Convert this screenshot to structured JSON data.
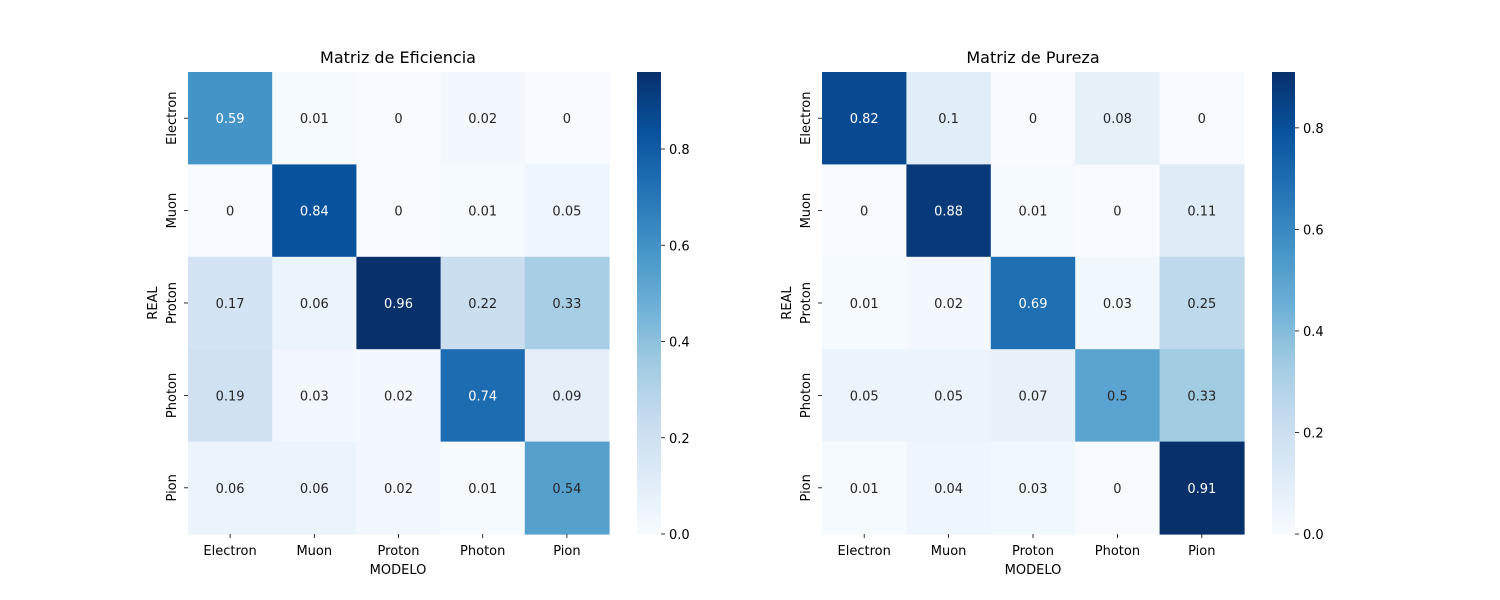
{
  "chart_data": [
    {
      "type": "heatmap",
      "title": "Matriz de Eficiencia",
      "xlabel": "MODELO",
      "ylabel": "REAL",
      "x_categories": [
        "Electron",
        "Muon",
        "Proton",
        "Photon",
        "Pion"
      ],
      "y_categories": [
        "Electron",
        "Muon",
        "Proton",
        "Photon",
        "Pion"
      ],
      "values": [
        [
          0.59,
          0.01,
          0,
          0.02,
          0
        ],
        [
          0,
          0.84,
          0,
          0.01,
          0.05
        ],
        [
          0.17,
          0.06,
          0.96,
          0.22,
          0.33
        ],
        [
          0.19,
          0.03,
          0.02,
          0.74,
          0.09
        ],
        [
          0.06,
          0.06,
          0.02,
          0.01,
          0.54
        ]
      ],
      "value_labels": [
        [
          "0.59",
          "0.01",
          "0",
          "0.02",
          "0"
        ],
        [
          "0",
          "0.84",
          "0",
          "0.01",
          "0.05"
        ],
        [
          "0.17",
          "0.06",
          "0.96",
          "0.22",
          "0.33"
        ],
        [
          "0.19",
          "0.03",
          "0.02",
          "0.74",
          "0.09"
        ],
        [
          "0.06",
          "0.06",
          "0.02",
          "0.01",
          "0.54"
        ]
      ],
      "colorbar": {
        "min": 0,
        "max": 0.96,
        "ticks": [
          "0.0",
          "0.2",
          "0.4",
          "0.6",
          "0.8"
        ],
        "tick_values": [
          0,
          0.2,
          0.4,
          0.6,
          0.8
        ]
      },
      "colormap": "Blues"
    },
    {
      "type": "heatmap",
      "title": "Matriz de Pureza",
      "xlabel": "MODELO",
      "ylabel": "REAL",
      "x_categories": [
        "Electron",
        "Muon",
        "Proton",
        "Photon",
        "Pion"
      ],
      "y_categories": [
        "Electron",
        "Muon",
        "Proton",
        "Photon",
        "Pion"
      ],
      "values": [
        [
          0.82,
          0.1,
          0,
          0.08,
          0
        ],
        [
          0,
          0.88,
          0.01,
          0,
          0.11
        ],
        [
          0.01,
          0.02,
          0.69,
          0.03,
          0.25
        ],
        [
          0.05,
          0.05,
          0.07,
          0.5,
          0.33
        ],
        [
          0.01,
          0.04,
          0.03,
          0,
          0.91
        ]
      ],
      "value_labels": [
        [
          "0.82",
          "0.1",
          "0",
          "0.08",
          "0"
        ],
        [
          "0",
          "0.88",
          "0.01",
          "0",
          "0.11"
        ],
        [
          "0.01",
          "0.02",
          "0.69",
          "0.03",
          "0.25"
        ],
        [
          "0.05",
          "0.05",
          "0.07",
          "0.5",
          "0.33"
        ],
        [
          "0.01",
          "0.04",
          "0.03",
          "0",
          "0.91"
        ]
      ],
      "colorbar": {
        "min": 0,
        "max": 0.91,
        "ticks": [
          "0.0",
          "0.2",
          "0.4",
          "0.6",
          "0.8"
        ],
        "tick_values": [
          0,
          0.2,
          0.4,
          0.6,
          0.8
        ]
      },
      "colormap": "Blues"
    }
  ]
}
